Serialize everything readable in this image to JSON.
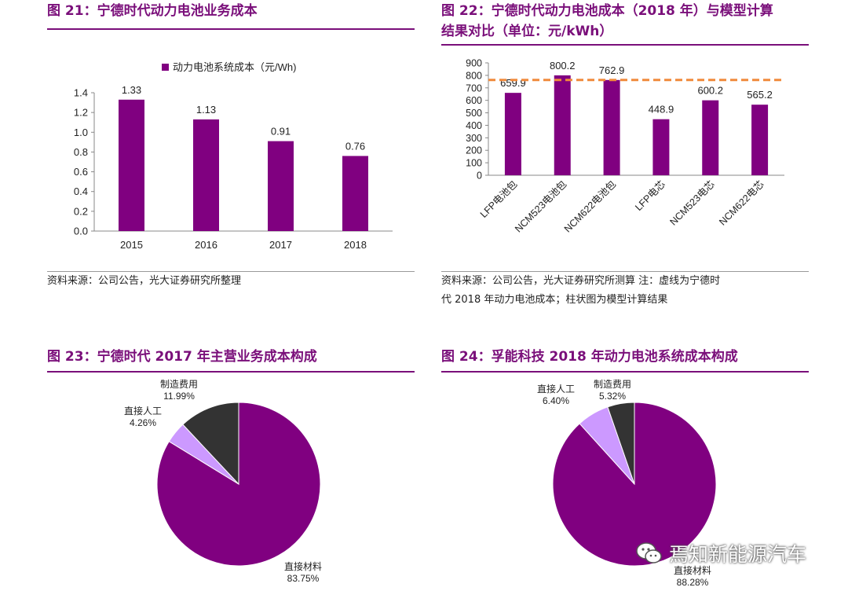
{
  "figures": {
    "fig21": {
      "title": "图 21：宁德时代动力电池业务成本"
    },
    "fig22": {
      "title_line1": "图 22：宁德时代动力电池成本（2018 年）与模型计算",
      "title_line2": "结果对比（单位：元/kWh）"
    },
    "fig23": {
      "title": "图 23：宁德时代 2017 年主营业务成本构成"
    },
    "fig24": {
      "title": "图 24：孚能科技 2018 年动力电池系统成本构成"
    }
  },
  "sources": {
    "fig21": "资料来源：公司公告，光大证券研究所整理",
    "fig22_line1": "资料来源：公司公告，光大证券研究所测算    注：虚线为宁德时",
    "fig22_line2": "代 2018 年动力电池成本；柱状图为模型计算结果"
  },
  "watermark": {
    "text": "焉知新能源汽车",
    "icon": "wechat-icon"
  },
  "chart_data": [
    {
      "type": "bar",
      "legend": "动力电池系统成本（元/Wh)",
      "legend_position": "top",
      "categories": [
        "2015",
        "2016",
        "2017",
        "2018"
      ],
      "values": [
        1.33,
        1.13,
        0.91,
        0.76
      ],
      "data_labels": [
        "1.33",
        "1.13",
        "0.91",
        "0.76"
      ],
      "ylim": [
        0,
        1.4
      ],
      "yticks": [
        "0.0",
        "0.2",
        "0.4",
        "0.6",
        "0.8",
        "1.0",
        "1.2",
        "1.4"
      ],
      "grid": false,
      "color": "#800080"
    },
    {
      "type": "bar",
      "categories": [
        "LFP电池包",
        "NCM523电池包",
        "NCM622电池包",
        "LFP电芯",
        "NCM523电芯",
        "NCM622电芯"
      ],
      "values": [
        659.9,
        800.2,
        762.9,
        448.9,
        600.2,
        565.2
      ],
      "data_labels": [
        "659.9",
        "800.2",
        "762.9",
        "448.9",
        "600.2",
        "565.2"
      ],
      "reference_line": {
        "value": 762.9,
        "style": "dashed",
        "color": "#f08a3c"
      },
      "ylim": [
        0,
        900
      ],
      "yticks": [
        "0",
        "100",
        "200",
        "300",
        "400",
        "500",
        "600",
        "700",
        "800",
        "900"
      ],
      "grid": false,
      "color": "#800080"
    },
    {
      "type": "pie",
      "slices": [
        {
          "name": "直接材料",
          "value": 83.75,
          "label": "83.75%",
          "color": "#800080"
        },
        {
          "name": "直接人工",
          "value": 4.26,
          "label": "4.26%",
          "color": "#cc99ff"
        },
        {
          "name": "制造费用",
          "value": 11.99,
          "label": "11.99%",
          "color": "#333333"
        }
      ]
    },
    {
      "type": "pie",
      "slices": [
        {
          "name": "直接材料",
          "value": 88.28,
          "label": "88.28%",
          "color": "#800080"
        },
        {
          "name": "直接人工",
          "value": 6.4,
          "label": "6.40%",
          "color": "#cc99ff"
        },
        {
          "name": "制造费用",
          "value": 5.32,
          "label": "5.32%",
          "color": "#333333"
        }
      ]
    }
  ]
}
